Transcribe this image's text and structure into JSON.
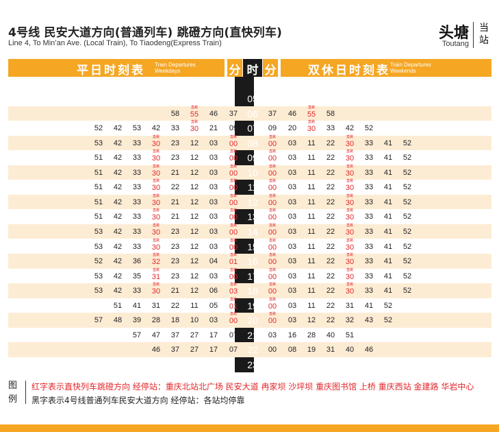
{
  "header": {
    "title_cn": "4号线 民安大道方向(普通列车) 跳磴方向(直快列车)",
    "title_en": "Line 4, To Min’an Ave. (Local Train),  To Tiaodeng(Express Train)",
    "station_cn": "头塘",
    "station_en": "Toutang",
    "current_station_label": "当站"
  },
  "band": {
    "weekday_title": "平日时刻表",
    "weekday_en_line1": "Train Departures",
    "weekday_en_line2": "Weekdays",
    "minute_label_left": "分",
    "hour_label": "时",
    "minute_label_right": "分",
    "weekend_title": "双休日时刻表",
    "weekend_en_line1": "Train Departures",
    "weekend_en_line2": "Weekends"
  },
  "colors": {
    "accent_orange": "#f5a623",
    "row_tint": "#fdecd4",
    "express_red": "#e3262a",
    "hour_column": "#1a1a1a"
  },
  "express_marker": "直跳",
  "timetable": [
    {
      "hour": "05",
      "weekday": [],
      "weekend": []
    },
    {
      "hour": "06",
      "weekday": [
        {
          "m": "58"
        },
        {
          "m": "55",
          "express": true
        },
        {
          "m": "46"
        },
        {
          "m": "37"
        }
      ],
      "weekend": [
        {
          "m": "37"
        },
        {
          "m": "46"
        },
        {
          "m": "55",
          "express": true
        },
        {
          "m": "58"
        }
      ]
    },
    {
      "hour": "07",
      "weekday": [
        {
          "m": "52"
        },
        {
          "m": "42"
        },
        {
          "m": "53"
        },
        {
          "m": "42"
        },
        {
          "m": "33"
        },
        {
          "m": "30",
          "express": true
        },
        {
          "m": "21"
        },
        {
          "m": "09"
        }
      ],
      "weekend": [
        {
          "m": "09"
        },
        {
          "m": "20"
        },
        {
          "m": "30",
          "express": true
        },
        {
          "m": "33"
        },
        {
          "m": "42"
        },
        {
          "m": "52"
        }
      ]
    },
    {
      "hour": "08",
      "weekday": [
        {
          "m": "53"
        },
        {
          "m": "42"
        },
        {
          "m": "33"
        },
        {
          "m": "30",
          "express": true
        },
        {
          "m": "23"
        },
        {
          "m": "12"
        },
        {
          "m": "03"
        },
        {
          "m": "00",
          "express": true
        }
      ],
      "weekend": [
        {
          "m": "00",
          "express": true
        },
        {
          "m": "03"
        },
        {
          "m": "11"
        },
        {
          "m": "22"
        },
        {
          "m": "30",
          "express": true
        },
        {
          "m": "33"
        },
        {
          "m": "41"
        },
        {
          "m": "52"
        }
      ]
    },
    {
      "hour": "09",
      "weekday": [
        {
          "m": "51"
        },
        {
          "m": "42"
        },
        {
          "m": "33"
        },
        {
          "m": "30",
          "express": true
        },
        {
          "m": "23"
        },
        {
          "m": "12"
        },
        {
          "m": "03"
        },
        {
          "m": "00",
          "express": true
        }
      ],
      "weekend": [
        {
          "m": "00",
          "express": true
        },
        {
          "m": "03"
        },
        {
          "m": "11"
        },
        {
          "m": "22"
        },
        {
          "m": "30",
          "express": true
        },
        {
          "m": "33"
        },
        {
          "m": "41"
        },
        {
          "m": "52"
        }
      ]
    },
    {
      "hour": "10",
      "weekday": [
        {
          "m": "51"
        },
        {
          "m": "42"
        },
        {
          "m": "33"
        },
        {
          "m": "30",
          "express": true
        },
        {
          "m": "21"
        },
        {
          "m": "12"
        },
        {
          "m": "03"
        },
        {
          "m": "00",
          "express": true
        }
      ],
      "weekend": [
        {
          "m": "00",
          "express": true
        },
        {
          "m": "03"
        },
        {
          "m": "11"
        },
        {
          "m": "22"
        },
        {
          "m": "30",
          "express": true
        },
        {
          "m": "33"
        },
        {
          "m": "41"
        },
        {
          "m": "52"
        }
      ]
    },
    {
      "hour": "11",
      "weekday": [
        {
          "m": "51"
        },
        {
          "m": "42"
        },
        {
          "m": "33"
        },
        {
          "m": "30",
          "express": true
        },
        {
          "m": "22"
        },
        {
          "m": "12"
        },
        {
          "m": "03"
        },
        {
          "m": "00",
          "express": true
        }
      ],
      "weekend": [
        {
          "m": "00",
          "express": true
        },
        {
          "m": "03"
        },
        {
          "m": "11"
        },
        {
          "m": "22"
        },
        {
          "m": "30",
          "express": true
        },
        {
          "m": "33"
        },
        {
          "m": "41"
        },
        {
          "m": "52"
        }
      ]
    },
    {
      "hour": "12",
      "weekday": [
        {
          "m": "51"
        },
        {
          "m": "42"
        },
        {
          "m": "33"
        },
        {
          "m": "30",
          "express": true
        },
        {
          "m": "21"
        },
        {
          "m": "12"
        },
        {
          "m": "03"
        },
        {
          "m": "00",
          "express": true
        }
      ],
      "weekend": [
        {
          "m": "00",
          "express": true
        },
        {
          "m": "03"
        },
        {
          "m": "11"
        },
        {
          "m": "22"
        },
        {
          "m": "30",
          "express": true
        },
        {
          "m": "33"
        },
        {
          "m": "41"
        },
        {
          "m": "52"
        }
      ]
    },
    {
      "hour": "13",
      "weekday": [
        {
          "m": "51"
        },
        {
          "m": "42"
        },
        {
          "m": "33"
        },
        {
          "m": "30",
          "express": true
        },
        {
          "m": "21"
        },
        {
          "m": "12"
        },
        {
          "m": "03"
        },
        {
          "m": "00",
          "express": true
        }
      ],
      "weekend": [
        {
          "m": "00",
          "express": true
        },
        {
          "m": "03"
        },
        {
          "m": "11"
        },
        {
          "m": "22"
        },
        {
          "m": "30",
          "express": true
        },
        {
          "m": "33"
        },
        {
          "m": "41"
        },
        {
          "m": "52"
        }
      ]
    },
    {
      "hour": "14",
      "weekday": [
        {
          "m": "53"
        },
        {
          "m": "42"
        },
        {
          "m": "33"
        },
        {
          "m": "30",
          "express": true
        },
        {
          "m": "23"
        },
        {
          "m": "12"
        },
        {
          "m": "03"
        },
        {
          "m": "00",
          "express": true
        }
      ],
      "weekend": [
        {
          "m": "00",
          "express": true
        },
        {
          "m": "03"
        },
        {
          "m": "11"
        },
        {
          "m": "22"
        },
        {
          "m": "30",
          "express": true
        },
        {
          "m": "33"
        },
        {
          "m": "41"
        },
        {
          "m": "52"
        }
      ]
    },
    {
      "hour": "15",
      "weekday": [
        {
          "m": "53"
        },
        {
          "m": "42"
        },
        {
          "m": "33"
        },
        {
          "m": "30",
          "express": true
        },
        {
          "m": "23"
        },
        {
          "m": "12"
        },
        {
          "m": "03"
        },
        {
          "m": "00",
          "express": true
        }
      ],
      "weekend": [
        {
          "m": "00",
          "express": true
        },
        {
          "m": "03"
        },
        {
          "m": "11"
        },
        {
          "m": "22"
        },
        {
          "m": "30",
          "express": true
        },
        {
          "m": "33"
        },
        {
          "m": "41"
        },
        {
          "m": "52"
        }
      ]
    },
    {
      "hour": "16",
      "weekday": [
        {
          "m": "52"
        },
        {
          "m": "42"
        },
        {
          "m": "36"
        },
        {
          "m": "32",
          "express": true
        },
        {
          "m": "23"
        },
        {
          "m": "12"
        },
        {
          "m": "04"
        },
        {
          "m": "01",
          "express": true
        }
      ],
      "weekend": [
        {
          "m": "00",
          "express": true
        },
        {
          "m": "03"
        },
        {
          "m": "11"
        },
        {
          "m": "22"
        },
        {
          "m": "30",
          "express": true
        },
        {
          "m": "33"
        },
        {
          "m": "41"
        },
        {
          "m": "52"
        }
      ]
    },
    {
      "hour": "17",
      "weekday": [
        {
          "m": "53"
        },
        {
          "m": "42"
        },
        {
          "m": "35"
        },
        {
          "m": "31",
          "express": true
        },
        {
          "m": "23"
        },
        {
          "m": "12"
        },
        {
          "m": "03"
        },
        {
          "m": "00",
          "express": true
        }
      ],
      "weekend": [
        {
          "m": "00",
          "express": true
        },
        {
          "m": "03"
        },
        {
          "m": "11"
        },
        {
          "m": "22"
        },
        {
          "m": "30",
          "express": true
        },
        {
          "m": "33"
        },
        {
          "m": "41"
        },
        {
          "m": "52"
        }
      ]
    },
    {
      "hour": "18",
      "weekday": [
        {
          "m": "53"
        },
        {
          "m": "42"
        },
        {
          "m": "33"
        },
        {
          "m": "30",
          "express": true
        },
        {
          "m": "21"
        },
        {
          "m": "12"
        },
        {
          "m": "06"
        },
        {
          "m": "03",
          "express": true
        }
      ],
      "weekend": [
        {
          "m": "00",
          "express": true
        },
        {
          "m": "03"
        },
        {
          "m": "11"
        },
        {
          "m": "22"
        },
        {
          "m": "30",
          "express": true
        },
        {
          "m": "33"
        },
        {
          "m": "41"
        },
        {
          "m": "52"
        }
      ]
    },
    {
      "hour": "19",
      "weekday": [
        {
          "m": "51"
        },
        {
          "m": "41"
        },
        {
          "m": "31"
        },
        {
          "m": "22"
        },
        {
          "m": "11"
        },
        {
          "m": "05"
        },
        {
          "m": "01",
          "express": true
        }
      ],
      "weekend": [
        {
          "m": "00",
          "express": true
        },
        {
          "m": "03"
        },
        {
          "m": "11"
        },
        {
          "m": "22"
        },
        {
          "m": "31"
        },
        {
          "m": "41"
        },
        {
          "m": "52"
        }
      ]
    },
    {
      "hour": "20",
      "weekday": [
        {
          "m": "57"
        },
        {
          "m": "48"
        },
        {
          "m": "39"
        },
        {
          "m": "28"
        },
        {
          "m": "18"
        },
        {
          "m": "10"
        },
        {
          "m": "03"
        },
        {
          "m": "00",
          "express": true
        }
      ],
      "weekend": [
        {
          "m": "00",
          "express": true
        },
        {
          "m": "03"
        },
        {
          "m": "12"
        },
        {
          "m": "22"
        },
        {
          "m": "32"
        },
        {
          "m": "43"
        },
        {
          "m": "52"
        }
      ]
    },
    {
      "hour": "21",
      "weekday": [
        {
          "m": "57"
        },
        {
          "m": "47"
        },
        {
          "m": "37"
        },
        {
          "m": "27"
        },
        {
          "m": "17"
        },
        {
          "m": "07"
        }
      ],
      "weekend": [
        {
          "m": "03"
        },
        {
          "m": "16"
        },
        {
          "m": "28"
        },
        {
          "m": "40"
        },
        {
          "m": "51"
        }
      ]
    },
    {
      "hour": "22",
      "weekday": [
        {
          "m": "46"
        },
        {
          "m": "37"
        },
        {
          "m": "27"
        },
        {
          "m": "17"
        },
        {
          "m": "07"
        }
      ],
      "weekend": [
        {
          "m": "00"
        },
        {
          "m": "08"
        },
        {
          "m": "19"
        },
        {
          "m": "31"
        },
        {
          "m": "40"
        },
        {
          "m": "46"
        }
      ]
    },
    {
      "hour": "23",
      "weekday": [],
      "weekend": []
    }
  ],
  "legend": {
    "label": "图例",
    "red_text": "红字表示直快列车跳磴方向  经停站：重庆北站北广场 民安大道 冉家坝 沙坪坝 重庆图书馆 上桥 重庆西站 金建路 华岩中心",
    "black_text": "黑字表示4号线普通列车民安大道方向  经停站：各站均停靠"
  }
}
